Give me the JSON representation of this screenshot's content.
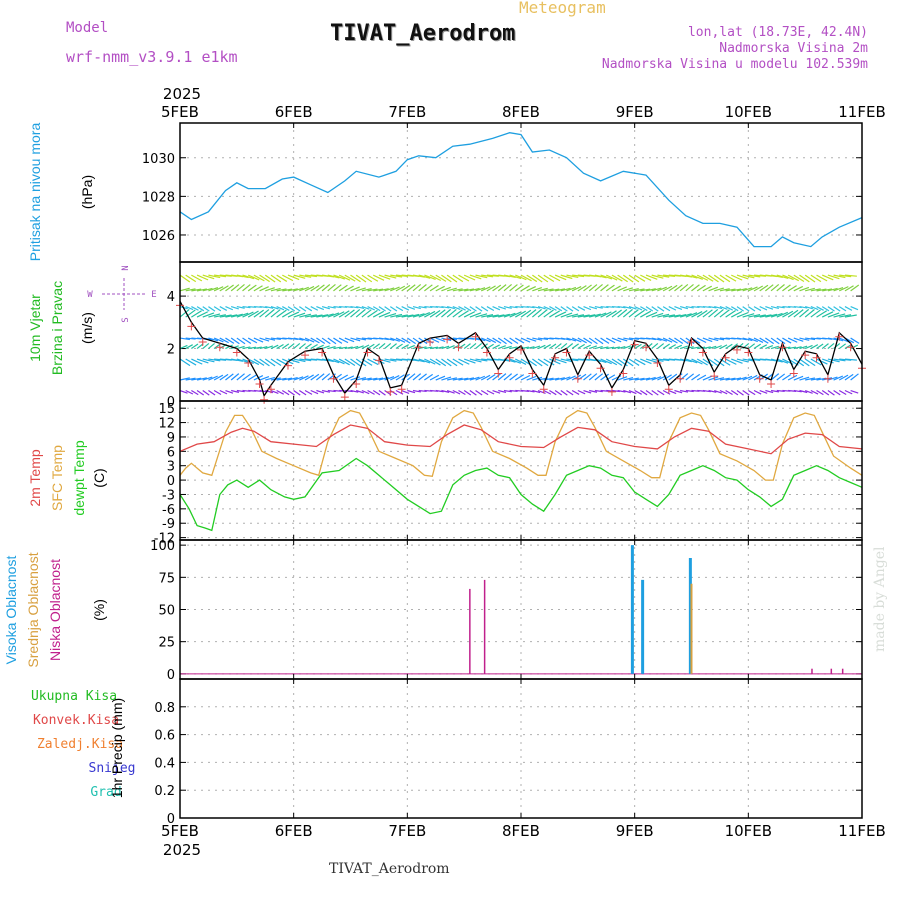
{
  "header": {
    "model_label": "Model",
    "model_name": "wrf-nmm_v3.9.1  e1km",
    "meteogram": "Meteogram",
    "station": "TIVAT_Aerodrom",
    "lonlat": "lon,lat (18.73E, 42.4N)",
    "altitude": "Nadmorska Visina 2m",
    "model_altitude": "Nadmorska Visina u modelu 102.539m"
  },
  "footer": {
    "station": "TIVAT_Aerodrom"
  },
  "credit": "made by Angel",
  "compass": {
    "n": "N",
    "s": "S",
    "w": "W",
    "e": "E"
  },
  "time_axis": {
    "year": "2025",
    "ticks": [
      "5FEB",
      "6FEB",
      "7FEB",
      "8FEB",
      "9FEB",
      "10FEB",
      "11FEB"
    ]
  },
  "colors": {
    "pressure": "#1e9fe0",
    "wind_label": "#22bb22",
    "temp2m": "#e04848",
    "sfc_temp": "#e0a840",
    "dewpoint": "#22cc22",
    "high_cloud": "#1e9fe0",
    "mid_cloud": "#d8a040",
    "low_cloud": "#c0208c",
    "total_precip": "#22bb22",
    "conv_precip": "#e04848",
    "frozen_precip": "#f08030",
    "snow": "#3838d0",
    "hail": "#20c0b0"
  },
  "chart_data": [
    {
      "type": "line",
      "panel": "pressure",
      "ylabel_top": "Pritisak na nivou mora",
      "ylabel_unit": "(hPa)",
      "ylim": [
        1024.6,
        1031.8
      ],
      "yticks": [
        "1026",
        "1028",
        "1030"
      ],
      "grid": true,
      "series": [
        {
          "x": [
            0.0,
            0.1,
            0.25,
            0.4,
            0.5,
            0.6,
            0.75,
            0.9,
            1.0,
            1.15,
            1.3,
            1.45,
            1.55,
            1.75,
            1.9,
            2.0,
            2.1,
            2.25,
            2.4,
            2.55,
            2.75,
            2.9,
            3.0,
            3.1,
            3.25,
            3.4,
            3.55,
            3.7,
            3.9,
            4.1,
            4.3,
            4.45,
            4.6,
            4.75,
            4.9,
            5.05,
            5.2,
            5.3,
            5.4,
            5.55,
            5.65,
            5.8,
            6.0
          ],
          "y": [
            1027.2,
            1026.8,
            1027.2,
            1028.3,
            1028.7,
            1028.4,
            1028.4,
            1028.9,
            1029.0,
            1028.6,
            1028.2,
            1028.8,
            1029.3,
            1029.0,
            1029.3,
            1029.9,
            1030.1,
            1030.0,
            1030.6,
            1030.7,
            1031.0,
            1031.3,
            1031.2,
            1030.3,
            1030.4,
            1030.0,
            1029.2,
            1028.8,
            1029.3,
            1029.1,
            1027.8,
            1027.0,
            1026.6,
            1026.6,
            1026.4,
            1025.4,
            1025.4,
            1025.9,
            1025.6,
            1025.4,
            1025.9,
            1026.4,
            1026.9
          ]
        }
      ]
    },
    {
      "type": "line",
      "panel": "wind",
      "ylabel_top": "10m Vjetar",
      "ylabel_mid": "Brzina i Pravac",
      "ylabel_unit": "(m/s)",
      "ylim": [
        0,
        5.3
      ],
      "yticks": [
        "0",
        "2",
        "4"
      ],
      "grid": true,
      "series": [
        {
          "name": "speed",
          "x": [
            0.0,
            0.1,
            0.2,
            0.35,
            0.5,
            0.6,
            0.7,
            0.74,
            0.8,
            0.95,
            1.1,
            1.25,
            1.35,
            1.45,
            1.55,
            1.65,
            1.75,
            1.85,
            1.95,
            2.1,
            2.2,
            2.35,
            2.45,
            2.6,
            2.7,
            2.8,
            2.9,
            3.0,
            3.1,
            3.2,
            3.3,
            3.4,
            3.5,
            3.6,
            3.7,
            3.8,
            3.9,
            4.0,
            4.1,
            4.2,
            4.3,
            4.4,
            4.5,
            4.6,
            4.7,
            4.8,
            4.9,
            5.0,
            5.1,
            5.2,
            5.3,
            5.4,
            5.5,
            5.6,
            5.7,
            5.8,
            5.9,
            6.0
          ],
          "y": [
            3.8,
            3.0,
            2.4,
            2.2,
            2.0,
            1.6,
            0.8,
            0.2,
            0.6,
            1.5,
            1.9,
            2.0,
            1.0,
            0.3,
            0.8,
            2.0,
            1.7,
            0.5,
            0.6,
            2.2,
            2.4,
            2.5,
            2.2,
            2.6,
            2.0,
            1.2,
            1.8,
            2.1,
            1.2,
            0.6,
            1.8,
            2.0,
            1.0,
            1.9,
            1.4,
            0.5,
            1.2,
            2.3,
            2.2,
            1.6,
            0.6,
            1.0,
            2.4,
            2.0,
            1.1,
            1.8,
            2.1,
            2.0,
            1.0,
            0.8,
            2.2,
            1.2,
            1.9,
            1.8,
            1.0,
            2.6,
            2.2,
            1.4
          ]
        }
      ],
      "barb_rows": [
        0.4,
        0.8,
        1.6,
        2.0,
        2.4,
        3.2,
        3.6,
        4.2,
        4.8
      ]
    },
    {
      "type": "line",
      "panel": "temperature",
      "ylabel_top": "2m Temp",
      "ylabel_mid": "SFC Temp",
      "ylabel_bottom": "dewpt Temp",
      "ylabel_unit": "(C)",
      "ylim": [
        -12.5,
        16.5
      ],
      "yticks": [
        "-12",
        "-9",
        "-6",
        "-3",
        "0",
        "3",
        "6",
        "9",
        "12",
        "15"
      ],
      "grid": true,
      "series": [
        {
          "name": "2m Temp",
          "x": [
            0.0,
            0.15,
            0.3,
            0.45,
            0.55,
            0.65,
            0.8,
            1.0,
            1.2,
            1.35,
            1.5,
            1.65,
            1.8,
            2.0,
            2.2,
            2.35,
            2.5,
            2.65,
            2.8,
            3.0,
            3.2,
            3.35,
            3.5,
            3.65,
            3.8,
            4.0,
            4.2,
            4.35,
            4.5,
            4.65,
            4.8,
            5.0,
            5.2,
            5.35,
            5.5,
            5.65,
            5.8,
            6.0
          ],
          "y": [
            6.0,
            7.5,
            8.0,
            10.0,
            10.8,
            10.2,
            8.0,
            7.5,
            7.0,
            9.5,
            11.5,
            10.8,
            8.0,
            7.3,
            7.0,
            9.5,
            11.5,
            10.5,
            8.0,
            7.0,
            6.8,
            9.0,
            11.0,
            10.5,
            8.0,
            7.0,
            6.5,
            9.0,
            10.8,
            10.2,
            7.5,
            6.5,
            5.5,
            8.5,
            9.8,
            9.5,
            7.0,
            6.5
          ]
        },
        {
          "name": "SFC Temp",
          "x": [
            0.0,
            0.05,
            0.1,
            0.2,
            0.28,
            0.4,
            0.48,
            0.55,
            0.62,
            0.72,
            0.85,
            1.0,
            1.15,
            1.22,
            1.3,
            1.4,
            1.5,
            1.58,
            1.65,
            1.75,
            1.9,
            2.05,
            2.15,
            2.22,
            2.3,
            2.4,
            2.5,
            2.58,
            2.65,
            2.75,
            2.9,
            3.05,
            3.15,
            3.22,
            3.3,
            3.4,
            3.5,
            3.58,
            3.65,
            3.75,
            3.9,
            4.05,
            4.15,
            4.22,
            4.3,
            4.4,
            4.5,
            4.58,
            4.65,
            4.75,
            4.9,
            5.05,
            5.15,
            5.22,
            5.3,
            5.4,
            5.5,
            5.58,
            5.65,
            5.75,
            5.9,
            6.0
          ],
          "y": [
            1.0,
            2.5,
            3.5,
            1.5,
            1.0,
            10.0,
            13.5,
            13.5,
            11.0,
            6.0,
            4.5,
            3.0,
            1.5,
            1.0,
            8.0,
            13.0,
            14.5,
            14.0,
            11.0,
            6.0,
            4.5,
            3.0,
            1.0,
            0.8,
            8.0,
            13.0,
            14.5,
            14.0,
            11.0,
            6.0,
            4.5,
            2.5,
            1.0,
            1.0,
            8.0,
            13.0,
            14.5,
            14.0,
            11.0,
            6.0,
            4.0,
            2.0,
            0.5,
            0.5,
            8.0,
            13.0,
            14.0,
            13.5,
            10.5,
            5.5,
            4.0,
            2.0,
            0.0,
            0.0,
            7.5,
            13.0,
            14.0,
            13.5,
            10.0,
            5.0,
            2.5,
            1.0
          ]
        },
        {
          "name": "dewpt Temp",
          "x": [
            0.0,
            0.08,
            0.15,
            0.22,
            0.28,
            0.35,
            0.42,
            0.5,
            0.6,
            0.7,
            0.8,
            0.92,
            1.0,
            1.1,
            1.25,
            1.4,
            1.55,
            1.65,
            1.75,
            1.85,
            2.0,
            2.1,
            2.2,
            2.3,
            2.4,
            2.5,
            2.6,
            2.7,
            2.8,
            2.9,
            3.0,
            3.1,
            3.2,
            3.3,
            3.4,
            3.5,
            3.6,
            3.7,
            3.8,
            3.9,
            4.0,
            4.1,
            4.2,
            4.3,
            4.4,
            4.5,
            4.6,
            4.7,
            4.8,
            4.9,
            5.0,
            5.1,
            5.2,
            5.3,
            5.4,
            5.5,
            5.6,
            5.7,
            5.8,
            5.9,
            6.0
          ],
          "y": [
            -3.0,
            -6.0,
            -9.5,
            -10.0,
            -10.5,
            -3.0,
            -1.0,
            0.0,
            -1.5,
            0.0,
            -2.0,
            -3.5,
            -4.0,
            -3.5,
            1.5,
            2.0,
            4.5,
            3.0,
            1.0,
            -1.0,
            -4.0,
            -5.5,
            -7.0,
            -6.5,
            -1.0,
            1.0,
            2.0,
            2.5,
            1.0,
            0.5,
            -3.0,
            -5.0,
            -6.5,
            -3.0,
            1.0,
            2.0,
            3.0,
            2.5,
            1.0,
            0.5,
            -2.5,
            -4.0,
            -5.5,
            -3.0,
            1.0,
            2.0,
            3.0,
            2.0,
            0.5,
            0.0,
            -2.0,
            -3.5,
            -5.5,
            -4.0,
            1.0,
            2.0,
            3.0,
            2.0,
            0.5,
            -0.5,
            -1.5
          ]
        }
      ]
    },
    {
      "type": "bar",
      "panel": "cloud",
      "ylabel_top": "Visoka Oblacnost",
      "ylabel_mid": "Srednja Oblacnost",
      "ylabel_bottom": "Niska Oblacnost",
      "ylabel_unit": "(%)",
      "ylim": [
        -4,
        104
      ],
      "yticks": [
        "0",
        "25",
        "50",
        "75",
        "100"
      ],
      "grid": true,
      "series": [
        {
          "name": "Visoka Oblacnost",
          "x": [
            3.98,
            4.07,
            4.49
          ],
          "values": [
            100,
            73,
            90
          ]
        },
        {
          "name": "Srednja Oblacnost",
          "x": [
            4.5
          ],
          "values": [
            70
          ]
        },
        {
          "name": "Niska Oblacnost",
          "x": [
            2.55,
            2.68,
            5.56,
            5.73,
            5.83
          ],
          "values": [
            66,
            73,
            4,
            4,
            4
          ]
        }
      ]
    },
    {
      "type": "bar",
      "panel": "precip",
      "ylabel_labels": [
        "Ukupna Kisa",
        "Konvek.Kisa",
        "Zaledj.Kisa",
        "Snijeg",
        "Grad"
      ],
      "ylabel_unit": "1hr Precip (mm)",
      "ylim": [
        0,
        1.0
      ],
      "yticks": [
        "0",
        "0.2",
        "0.4",
        "0.6",
        "0.8"
      ],
      "grid": true,
      "series": []
    }
  ]
}
